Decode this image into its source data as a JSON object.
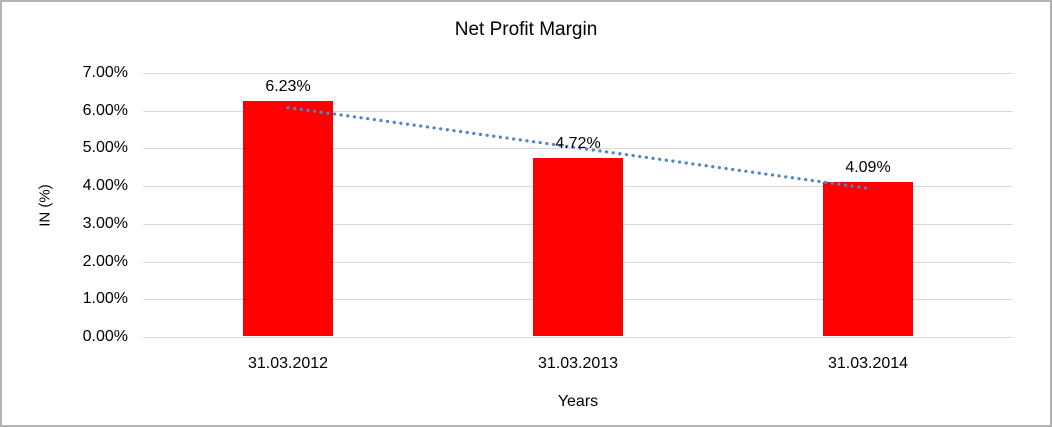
{
  "frame": {
    "background": "#ffffff",
    "border_color": "#b3b3b3"
  },
  "chart_data": {
    "type": "bar",
    "title": "Net Profit Margin",
    "categories": [
      "31.03.2012",
      "31.03.2013",
      "31.03.2014"
    ],
    "values": [
      6.23,
      4.72,
      4.09
    ],
    "data_labels": [
      "6.23%",
      "4.72%",
      "4.09%"
    ],
    "xlabel": "Years",
    "ylabel": "IN (%)",
    "ylim": [
      0,
      7
    ],
    "ytick_step": 1,
    "ytick_labels": [
      "0.00%",
      "1.00%",
      "2.00%",
      "3.00%",
      "4.00%",
      "5.00%",
      "6.00%",
      "7.00%"
    ],
    "grid": true,
    "gridline_color": "#d9d9d9",
    "legend": "none",
    "bar_color": "#ff0000",
    "trendline": {
      "type": "linear",
      "style": "dotted",
      "color": "#4e86c8"
    }
  }
}
